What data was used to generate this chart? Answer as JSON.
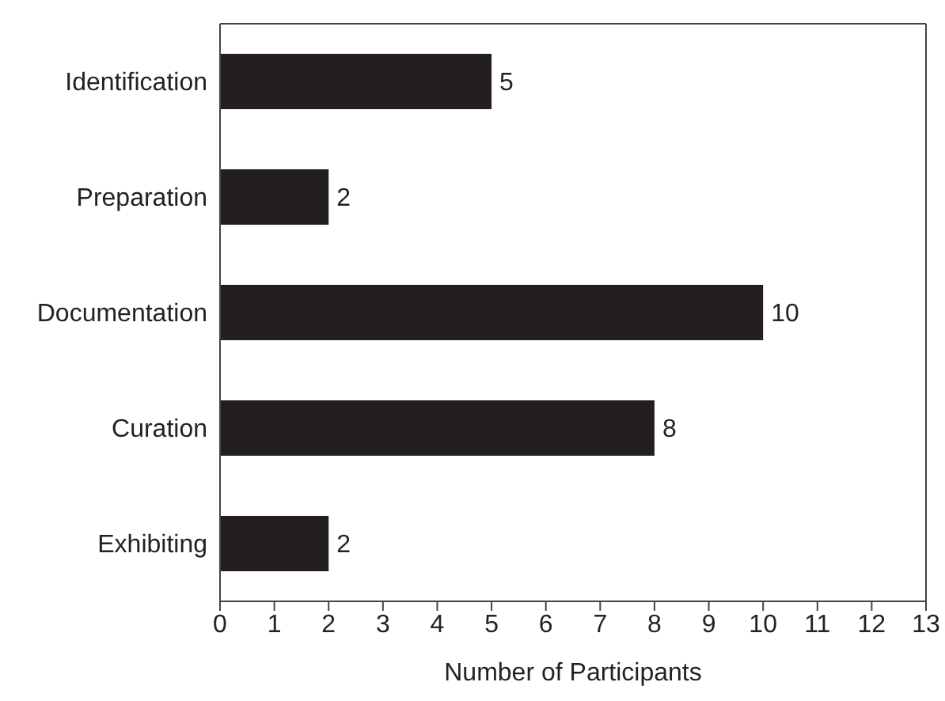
{
  "chart_data": {
    "type": "bar",
    "orientation": "horizontal",
    "xlabel": "Number of Participants",
    "categories": [
      "Identification",
      "Preparation",
      "Documentation",
      "Curation",
      "Exhibiting"
    ],
    "values": [
      5,
      2,
      10,
      8,
      2
    ],
    "color": "#231f20",
    "xlim": [
      0,
      13
    ],
    "xticks": [
      0,
      1,
      2,
      3,
      4,
      5,
      6,
      7,
      8,
      9,
      10,
      11,
      12,
      13
    ],
    "data_labels": true,
    "grid": false
  }
}
